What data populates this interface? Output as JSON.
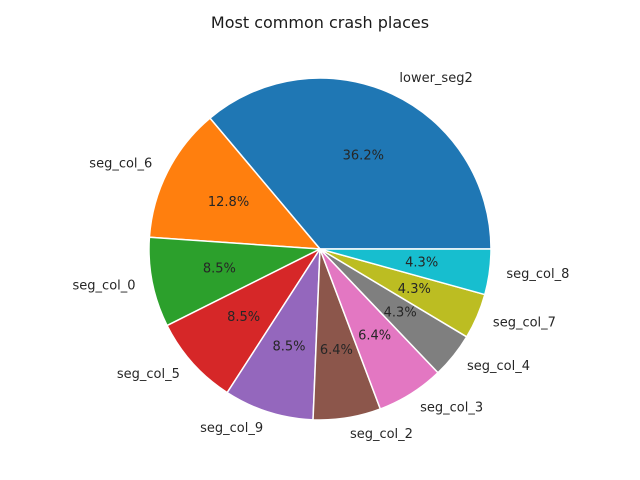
{
  "chart_data": {
    "type": "pie",
    "title": "Most common crash places",
    "start_angle_deg": 0,
    "direction": "counterclockwise",
    "slices": [
      {
        "label": "lower_seg2",
        "value": 36.2,
        "pct_text": "36.2%",
        "color": "#1f77b4"
      },
      {
        "label": "seg_col_6",
        "value": 12.8,
        "pct_text": "12.8%",
        "color": "#ff7f0e"
      },
      {
        "label": "seg_col_0",
        "value": 8.5,
        "pct_text": "8.5%",
        "color": "#2ca02c"
      },
      {
        "label": "seg_col_5",
        "value": 8.5,
        "pct_text": "8.5%",
        "color": "#d62728"
      },
      {
        "label": "seg_col_9",
        "value": 8.5,
        "pct_text": "8.5%",
        "color": "#9467bd"
      },
      {
        "label": "seg_col_2",
        "value": 6.4,
        "pct_text": "6.4%",
        "color": "#8c564b"
      },
      {
        "label": "seg_col_3",
        "value": 6.4,
        "pct_text": "6.4%",
        "color": "#e377c2"
      },
      {
        "label": "seg_col_4",
        "value": 4.3,
        "pct_text": "4.3%",
        "color": "#7f7f7f"
      },
      {
        "label": "seg_col_7",
        "value": 4.3,
        "pct_text": "4.3%",
        "color": "#bcbd22"
      },
      {
        "label": "seg_col_8",
        "value": 4.3,
        "pct_text": "4.3%",
        "color": "#17becf"
      }
    ]
  }
}
